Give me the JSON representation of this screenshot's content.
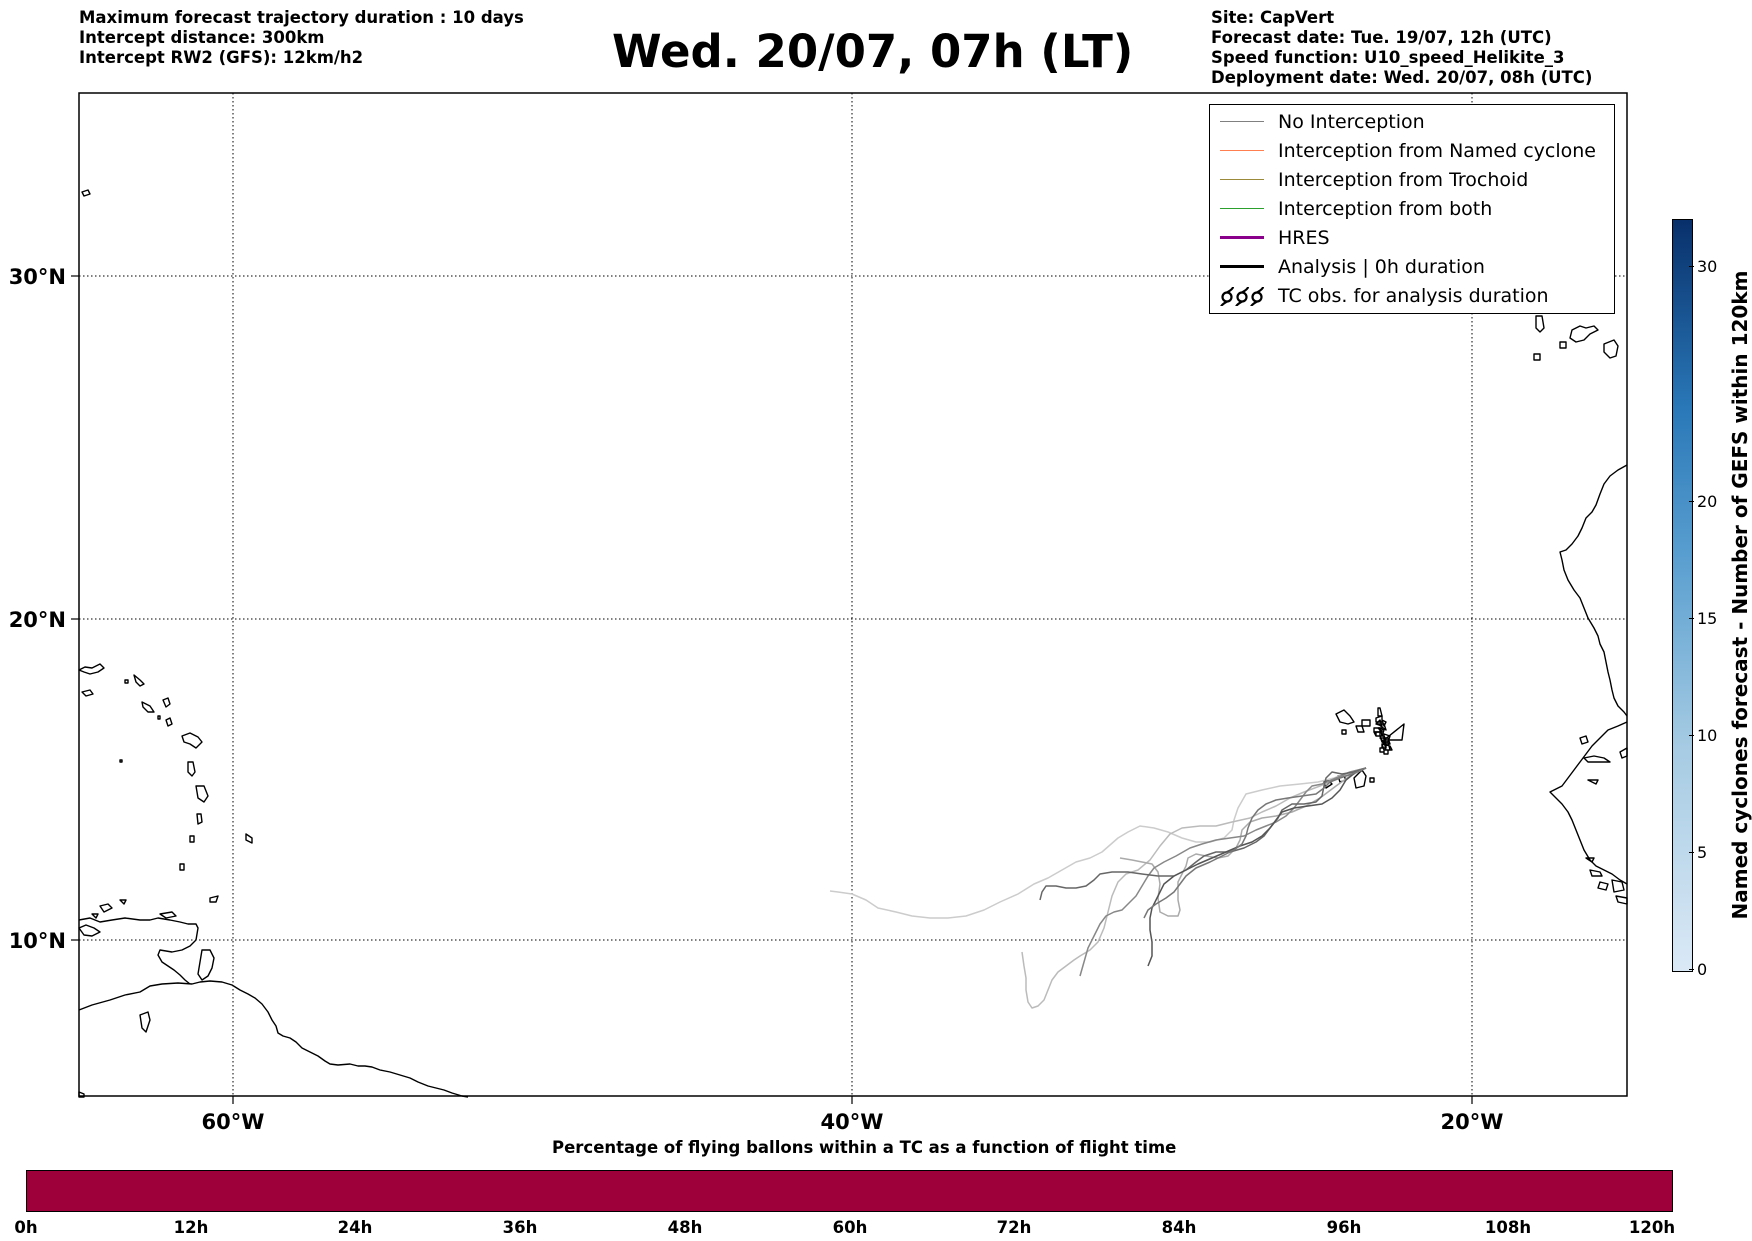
{
  "header": {
    "left_lines": [
      "Maximum forecast trajectory duration : 10 days",
      "Intercept distance: 300km",
      "Intercept RW2 (GFS):  12km/h2"
    ],
    "title": "Wed. 20/07, 07h (LT)",
    "right_lines": [
      "Site: CapVert",
      "Forecast date: Tue. 19/07, 12h (UTC)",
      "Speed function: U10_speed_Helikite_3",
      "Deployment date: Wed. 20/07, 08h (UTC)"
    ]
  },
  "map": {
    "lat_labels": [
      {
        "value": 30,
        "label": "30°N"
      },
      {
        "value": 20,
        "label": "20°N"
      },
      {
        "value": 10,
        "label": "10°N"
      }
    ],
    "lon_labels": [
      {
        "value": -60,
        "label": "60°W"
      },
      {
        "value": -40,
        "label": "40°W"
      },
      {
        "value": -20,
        "label": "20°W"
      }
    ],
    "lon_range": [
      -65,
      -15
    ],
    "lat_range": [
      5.4,
      34.7
    ],
    "gridlines": "dotted",
    "site": "CapVert"
  },
  "legend": {
    "placement": "top-right",
    "items": [
      {
        "label": "No Interception",
        "color": "#808080",
        "style": "thin-line"
      },
      {
        "label": "Interception from Named cyclone",
        "color": "#ff7f50",
        "style": "thin-line"
      },
      {
        "label": "Interception from Trochoid",
        "color": "#9a8a3a",
        "style": "thin-line"
      },
      {
        "label": "Interception from both",
        "color": "#2ca02c",
        "style": "thin-line"
      },
      {
        "label": "HRES",
        "color": "#8b008b",
        "style": "thick-line"
      },
      {
        "label": "Analysis | 0h duration",
        "color": "#000000",
        "style": "thick-line"
      },
      {
        "label": "TC obs. for analysis duration",
        "color": "#000000",
        "style": "cyclone-symbols"
      }
    ]
  },
  "flight_time_bar": {
    "title": "Percentage of flying ballons within a TC as a function of flight time",
    "color": "#9e003a",
    "ticks": [
      "0h",
      "12h",
      "24h",
      "36h",
      "48h",
      "60h",
      "72h",
      "84h",
      "96h",
      "108h",
      "120h"
    ]
  },
  "cyclone_colorbar": {
    "label": "Named cyclones forecast - Number of GEFS within 120km",
    "ticks": [
      0,
      5,
      10,
      15,
      20,
      30
    ],
    "range": [
      0,
      32
    ],
    "color_low": "#dbe9f6",
    "color_high": "#08306b"
  }
}
